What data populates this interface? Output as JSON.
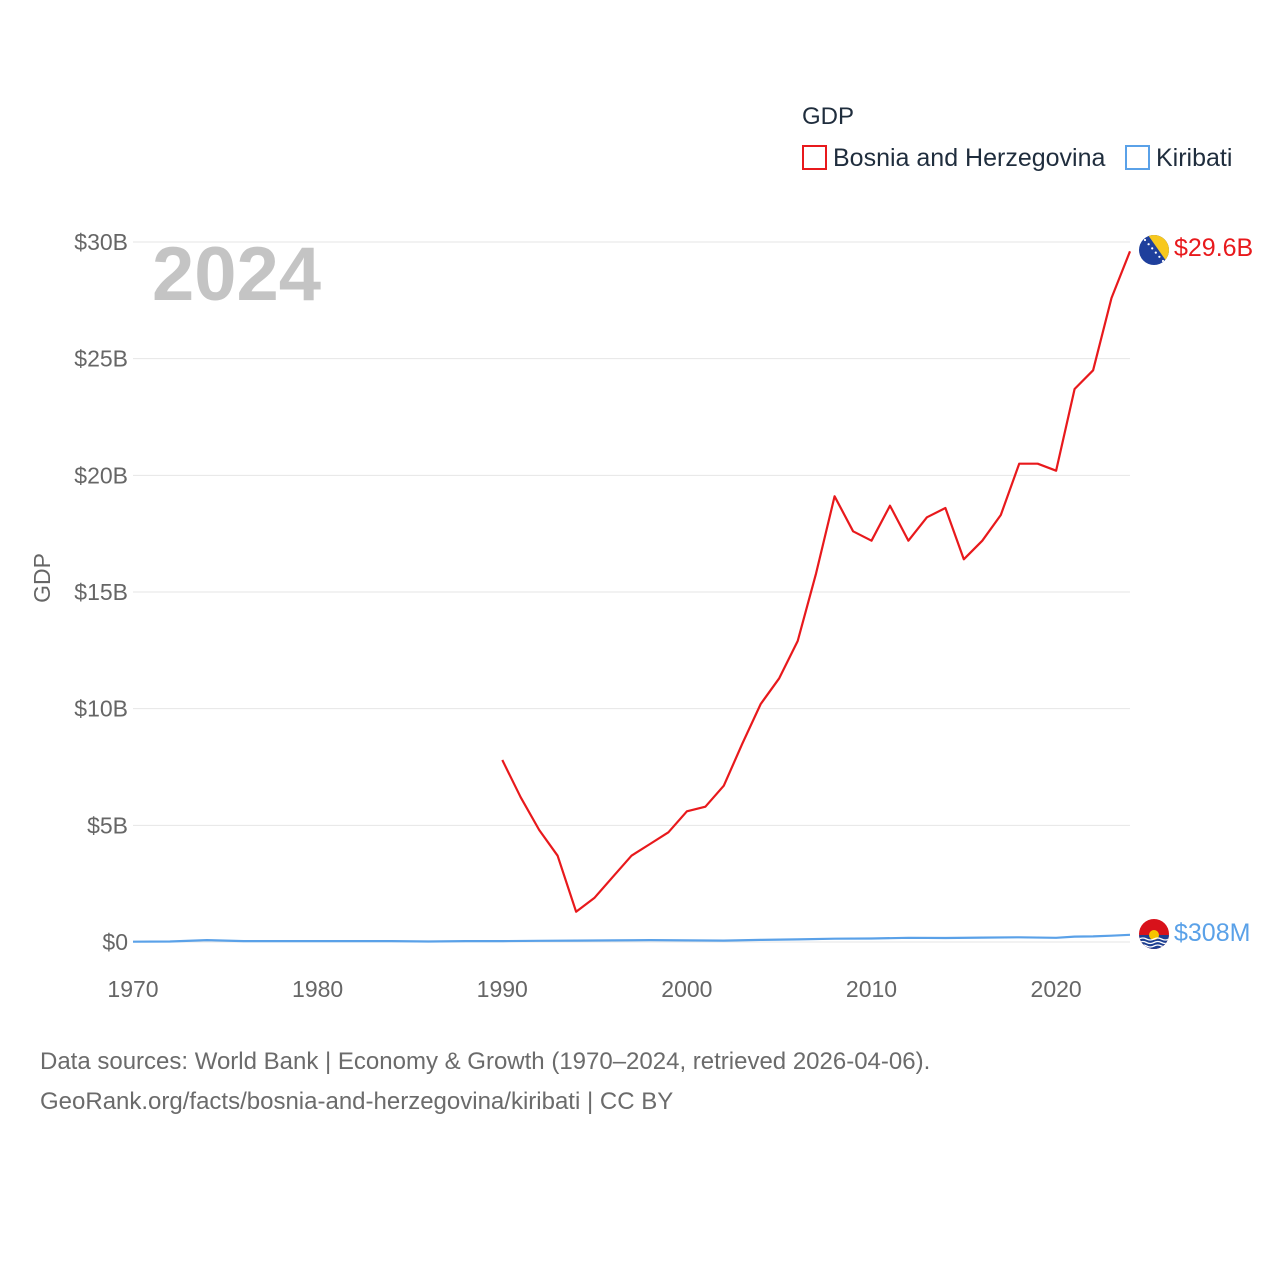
{
  "chart_data": {
    "type": "line",
    "title": "GDP",
    "year_label": "2024",
    "xlabel": "",
    "ylabel": "GDP",
    "xlim": [
      1970,
      2024
    ],
    "ylim": [
      0,
      30
    ],
    "unit": "billions USD",
    "x_ticks": [
      "1970",
      "1980",
      "1990",
      "2000",
      "2010",
      "2020"
    ],
    "y_ticks": [
      {
        "value": 0,
        "label": "$0"
      },
      {
        "value": 5,
        "label": "$5B"
      },
      {
        "value": 10,
        "label": "$10B"
      },
      {
        "value": 15,
        "label": "$15B"
      },
      {
        "value": 20,
        "label": "$20B"
      },
      {
        "value": 25,
        "label": "$25B"
      },
      {
        "value": 30,
        "label": "$30B"
      }
    ],
    "legend": {
      "title": "GDP",
      "position": "top-right"
    },
    "series": [
      {
        "name": "Bosnia and Herzegovina",
        "color": "#e8191c",
        "end_label": "$29.6B",
        "flag": "bosnia-and-herzegovina-flag-icon",
        "x": [
          1990,
          1991,
          1992,
          1993,
          1994,
          1995,
          1996,
          1997,
          1998,
          1999,
          2000,
          2001,
          2002,
          2003,
          2004,
          2005,
          2006,
          2007,
          2008,
          2009,
          2010,
          2011,
          2012,
          2013,
          2014,
          2015,
          2016,
          2017,
          2018,
          2019,
          2020,
          2021,
          2022,
          2023,
          2024
        ],
        "values": [
          7.8,
          6.2,
          4.8,
          3.7,
          1.3,
          1.9,
          2.8,
          3.7,
          4.2,
          4.7,
          5.6,
          5.8,
          6.7,
          8.5,
          10.2,
          11.3,
          12.9,
          15.8,
          19.1,
          17.6,
          17.2,
          18.7,
          17.2,
          18.2,
          18.6,
          16.4,
          17.2,
          18.3,
          20.5,
          20.5,
          20.2,
          23.7,
          24.5,
          27.6,
          29.6
        ]
      },
      {
        "name": "Kiribati",
        "color": "#5aa1e8",
        "end_label": "$308M",
        "flag": "kiribati-flag-icon",
        "x": [
          1970,
          1972,
          1974,
          1976,
          1978,
          1980,
          1982,
          1984,
          1986,
          1988,
          1990,
          1992,
          1994,
          1996,
          1998,
          2000,
          2002,
          2004,
          2006,
          2008,
          2010,
          2012,
          2014,
          2016,
          2018,
          2020,
          2021,
          2022,
          2023,
          2024
        ],
        "values": [
          0.014,
          0.02,
          0.08,
          0.04,
          0.04,
          0.04,
          0.04,
          0.04,
          0.02,
          0.04,
          0.04,
          0.05,
          0.06,
          0.07,
          0.08,
          0.07,
          0.06,
          0.09,
          0.11,
          0.14,
          0.15,
          0.18,
          0.17,
          0.19,
          0.2,
          0.18,
          0.23,
          0.24,
          0.27,
          0.308
        ]
      }
    ]
  },
  "footer": {
    "line1": "Data sources: World Bank | Economy & Growth (1970–2024, retrieved 2026-04-06).",
    "line2": "GeoRank.org/facts/bosnia-and-herzegovina/kiribati | CC BY"
  }
}
